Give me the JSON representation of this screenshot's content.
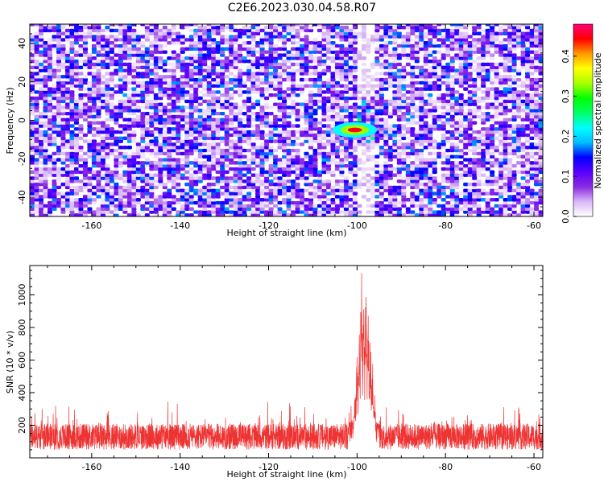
{
  "title": "C2E6.2023.030.04.58.R07",
  "chart_data": [
    {
      "type": "heatmap",
      "xlabel": "Height of straight line (km)",
      "ylabel": "Frequency (Hz)",
      "xlim": [
        -174,
        -58
      ],
      "ylim": [
        -50,
        50
      ],
      "xticks": [
        -160,
        -140,
        -120,
        -100,
        -80,
        -60
      ],
      "yticks": [
        -40,
        -20,
        0,
        20,
        40
      ],
      "colorbar": {
        "label": "Normalized spectral amplitude",
        "range": [
          0,
          0.48
        ],
        "ticks": [
          "0.0",
          "0.1",
          "0.2",
          "0.3",
          "0.4"
        ],
        "colormap": [
          "#ffffff",
          "#d9b8f5",
          "#8a2be2",
          "#5a00ff",
          "#0000ff",
          "#00bfff",
          "#00ffff",
          "#00ff66",
          "#00ff00",
          "#aaff00",
          "#ffff00",
          "#ff9900",
          "#ff0000",
          "#ff0077"
        ]
      },
      "features": {
        "quiet_band_km": [
          -101,
          -96
        ],
        "hotspot": {
          "x": -100.5,
          "y": -5,
          "value": 0.45
        }
      }
    },
    {
      "type": "line",
      "xlabel": "Height of straight line (km)",
      "ylabel": "SNR (10 * v/v)",
      "xlim": [
        -174,
        -58
      ],
      "ylim": [
        0,
        1180
      ],
      "xticks": [
        -160,
        -140,
        -120,
        -100,
        -80,
        -60
      ],
      "yticks": [
        200,
        400,
        600,
        800,
        1000
      ],
      "color": "#ee3333",
      "baseline": {
        "mean": 130,
        "range": [
          50,
          280
        ]
      },
      "peaks": [
        {
          "x": -100.5,
          "y": 420
        },
        {
          "x": -100.0,
          "y": 620
        },
        {
          "x": -99.5,
          "y": 840
        },
        {
          "x": -99.0,
          "y": 1170
        },
        {
          "x": -98.5,
          "y": 960
        },
        {
          "x": -98.0,
          "y": 1050
        },
        {
          "x": -97.5,
          "y": 880
        },
        {
          "x": -97.0,
          "y": 720
        },
        {
          "x": -96.5,
          "y": 600
        },
        {
          "x": -96.0,
          "y": 400
        }
      ]
    }
  ]
}
